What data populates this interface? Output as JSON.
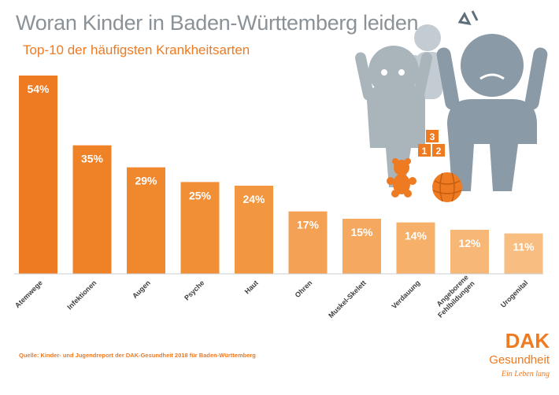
{
  "header": {
    "title": "Woran Kinder in Baden-Württemberg leiden",
    "subtitle": "Top-10 der häufigsten Krankheitsarten"
  },
  "source": "Quelle: Kinder- und Jugendreport der DAK-Gesundheit 2018 für Baden-Württemberg",
  "logo": {
    "brand": "DAK",
    "name": "Gesundheit",
    "tagline": "Ein Leben lang"
  },
  "illustration": {
    "blocks": [
      "3",
      "1",
      "2"
    ]
  },
  "colors": {
    "title": "#8a9297",
    "accent": "#ee7a22",
    "figure_gray": "#a9b4bb",
    "figure_dark": "#8a9aa6"
  },
  "chart_data": {
    "type": "bar",
    "categories": [
      "Atemwege",
      "Infektionen",
      "Augen",
      "Psyche",
      "Haut",
      "Ohren",
      "Muskel-Skelett",
      "Verdauung",
      "Angeborene Fehlbildungen",
      "Urogenital"
    ],
    "category_lines": [
      [
        "Atemwege"
      ],
      [
        "Infektionen"
      ],
      [
        "Augen"
      ],
      [
        "Psyche"
      ],
      [
        "Haut"
      ],
      [
        "Ohren"
      ],
      [
        "Muskel-Skelett"
      ],
      [
        "Verdauung"
      ],
      [
        "Angeborene",
        "Fehlbildungen"
      ],
      [
        "Urogenital"
      ]
    ],
    "values": [
      54,
      35,
      29,
      25,
      24,
      17,
      15,
      14,
      12,
      11
    ],
    "value_labels": [
      "54%",
      "35%",
      "29%",
      "25%",
      "24%",
      "17%",
      "15%",
      "14%",
      "12%",
      "11%"
    ],
    "bar_colors": [
      "#ee7a22",
      "#ef8127",
      "#f0882e",
      "#f18f37",
      "#f29640",
      "#f4a155",
      "#f5a95f",
      "#f6b06a",
      "#f7b776",
      "#f8be81"
    ],
    "ylim": [
      0,
      54
    ],
    "grid": false,
    "legend": "none"
  }
}
